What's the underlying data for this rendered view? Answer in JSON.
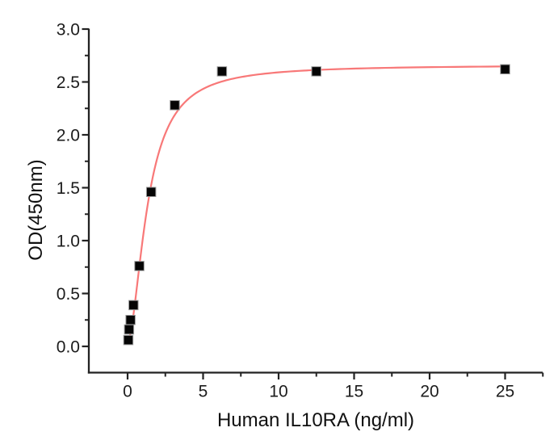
{
  "chart_data": {
    "type": "scatter",
    "title": "",
    "xlabel": "Human IL10RA (ng/ml)",
    "ylabel": "OD(450nm)",
    "xlim": [
      -2.57,
      27.5
    ],
    "ylim": [
      -0.25,
      3.0
    ],
    "grid": false,
    "legend": "none",
    "x_axis": {
      "major_ticks": [
        {
          "v": 0,
          "label": "0"
        },
        {
          "v": 5,
          "label": "5"
        },
        {
          "v": 10,
          "label": "10"
        },
        {
          "v": 15,
          "label": "15"
        },
        {
          "v": 20,
          "label": "20"
        },
        {
          "v": 25,
          "label": "25"
        }
      ],
      "minor_ticks": [
        2.5,
        7.5,
        12.5,
        17.5,
        22.5,
        27.5
      ]
    },
    "y_axis": {
      "major_ticks": [
        {
          "v": 0.0,
          "label": "0.0"
        },
        {
          "v": 0.5,
          "label": "0.5"
        },
        {
          "v": 1.0,
          "label": "1.0"
        },
        {
          "v": 1.5,
          "label": "1.5"
        },
        {
          "v": 2.0,
          "label": "2.0"
        },
        {
          "v": 2.5,
          "label": "2.5"
        },
        {
          "v": 3.0,
          "label": "3.0"
        }
      ],
      "minor_ticks": [
        0.25,
        0.75,
        1.25,
        1.75,
        2.25,
        2.75
      ]
    },
    "series": [
      {
        "name": "Human IL10RA",
        "marker": "square",
        "points": [
          {
            "x": 0.049,
            "y": 0.06
          },
          {
            "x": 0.098,
            "y": 0.16
          },
          {
            "x": 0.195,
            "y": 0.25
          },
          {
            "x": 0.39,
            "y": 0.39
          },
          {
            "x": 0.78,
            "y": 0.76
          },
          {
            "x": 1.56,
            "y": 1.46
          },
          {
            "x": 3.125,
            "y": 2.28
          },
          {
            "x": 6.25,
            "y": 2.6
          },
          {
            "x": 12.5,
            "y": 2.6
          },
          {
            "x": 25,
            "y": 2.62
          }
        ]
      }
    ],
    "fit_curve": {
      "model": "4PL",
      "bottom": 0.05,
      "top": 2.66,
      "ec50": 1.35,
      "hill": 1.8,
      "x_start": 0.049,
      "x_end": 25
    },
    "colors": {
      "marker": "#050505",
      "marker_edge": "#9a9a9a",
      "curve": "#F87878",
      "axis": "#222222",
      "text": "#1c1c1c",
      "background": "#FFFFFF"
    }
  }
}
